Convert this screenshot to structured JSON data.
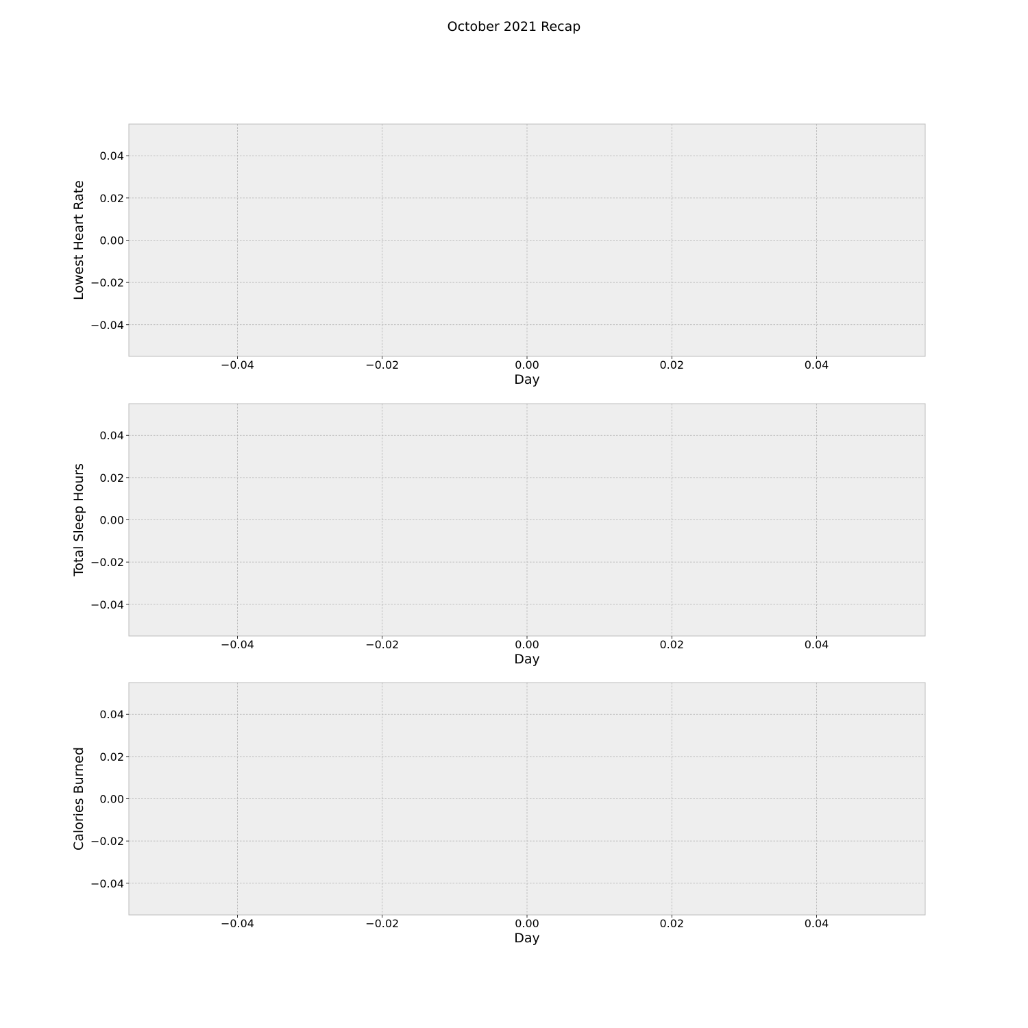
{
  "figure_title": "October 2021 Recap",
  "chart_data": [
    {
      "type": "line",
      "title": "",
      "xlabel": "Day",
      "ylabel": "Lowest Heart Rate",
      "xlim": [
        -0.055,
        0.055
      ],
      "ylim": [
        -0.055,
        0.055
      ],
      "xticks": [
        -0.04,
        -0.02,
        0.0,
        0.02,
        0.04
      ],
      "xtick_labels": [
        "−0.04",
        "−0.02",
        "0.00",
        "0.02",
        "0.04"
      ],
      "yticks": [
        -0.04,
        -0.02,
        0.0,
        0.02,
        0.04
      ],
      "ytick_labels": [
        "−0.04",
        "−0.02",
        "0.00",
        "0.02",
        "0.04"
      ],
      "grid": true,
      "series": []
    },
    {
      "type": "line",
      "title": "",
      "xlabel": "Day",
      "ylabel": "Total Sleep Hours",
      "xlim": [
        -0.055,
        0.055
      ],
      "ylim": [
        -0.055,
        0.055
      ],
      "xticks": [
        -0.04,
        -0.02,
        0.0,
        0.02,
        0.04
      ],
      "xtick_labels": [
        "−0.04",
        "−0.02",
        "0.00",
        "0.02",
        "0.04"
      ],
      "yticks": [
        -0.04,
        -0.02,
        0.0,
        0.02,
        0.04
      ],
      "ytick_labels": [
        "−0.04",
        "−0.02",
        "0.00",
        "0.02",
        "0.04"
      ],
      "grid": true,
      "series": []
    },
    {
      "type": "line",
      "title": "",
      "xlabel": "Day",
      "ylabel": "Calories Burned",
      "xlim": [
        -0.055,
        0.055
      ],
      "ylim": [
        -0.055,
        0.055
      ],
      "xticks": [
        -0.04,
        -0.02,
        0.0,
        0.02,
        0.04
      ],
      "xtick_labels": [
        "−0.04",
        "−0.02",
        "0.00",
        "0.02",
        "0.04"
      ],
      "yticks": [
        -0.04,
        -0.02,
        0.0,
        0.02,
        0.04
      ],
      "ytick_labels": [
        "−0.04",
        "−0.02",
        "0.00",
        "0.02",
        "0.04"
      ],
      "grid": true,
      "series": []
    }
  ]
}
